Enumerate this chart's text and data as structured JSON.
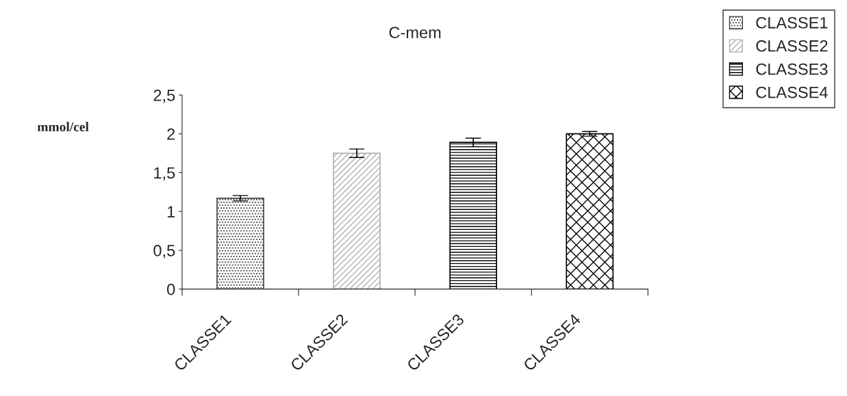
{
  "chart_data": {
    "type": "bar",
    "title": "C-mem",
    "ylabel": "mmol/cel",
    "categories": [
      "CLASSE1",
      "CLASSE2",
      "CLASSE3",
      "CLASSE4"
    ],
    "series": [
      {
        "name": "CLASSE1",
        "color": "#444444",
        "values": [
          1.17,
          null,
          null,
          null
        ],
        "errors": [
          0.035,
          null,
          null,
          null
        ]
      },
      {
        "name": "CLASSE2",
        "color": "#b0b0b0",
        "values": [
          null,
          1.75,
          null,
          null
        ],
        "errors": [
          null,
          0.055,
          null,
          null
        ]
      },
      {
        "name": "CLASSE3",
        "color": "#000000",
        "values": [
          null,
          null,
          1.89,
          null
        ],
        "errors": [
          null,
          null,
          0.055,
          null
        ]
      },
      {
        "name": "CLASSE4",
        "color": "#000000",
        "values": [
          null,
          null,
          null,
          2.0
        ],
        "errors": [
          null,
          null,
          null,
          0.03
        ]
      }
    ],
    "ylim": [
      0,
      2.5
    ],
    "yticks": [
      {
        "value": 0,
        "label": "0"
      },
      {
        "value": 0.5,
        "label": "0,5"
      },
      {
        "value": 1,
        "label": "1"
      },
      {
        "value": 1.5,
        "label": "1,5"
      },
      {
        "value": 2,
        "label": "2"
      },
      {
        "value": 2.5,
        "label": "2,5"
      }
    ],
    "legend": "top right",
    "grid": false
  }
}
